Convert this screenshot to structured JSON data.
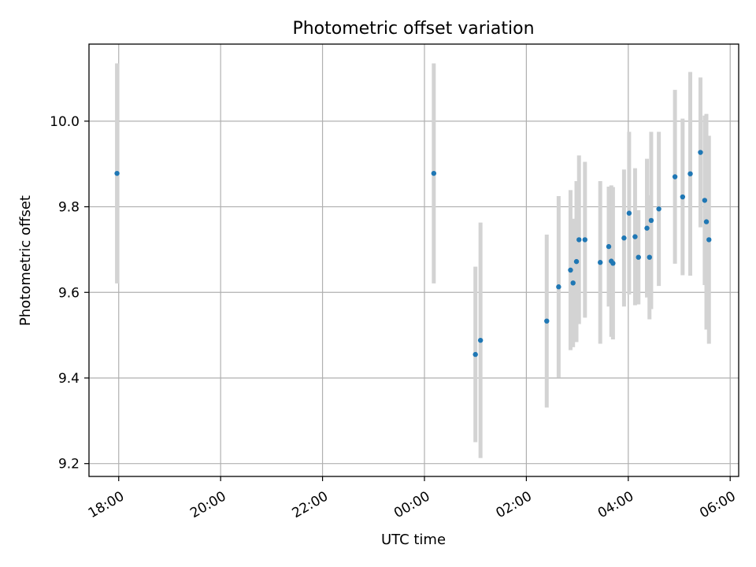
{
  "chart_data": {
    "type": "scatter",
    "title": "Photometric offset variation",
    "xlabel": "UTC time",
    "ylabel": "Photometric offset",
    "x_ticks": [
      {
        "label": "18:00",
        "t": "18:00"
      },
      {
        "label": "20:00",
        "t": "20:00"
      },
      {
        "label": "22:00",
        "t": "22:00"
      },
      {
        "label": "00:00",
        "t": "00:00"
      },
      {
        "label": "02:00",
        "t": "02:00"
      },
      {
        "label": "04:00",
        "t": "04:00"
      },
      {
        "label": "06:00",
        "t": "06:00"
      }
    ],
    "x_range": [
      "17:25",
      "06:10"
    ],
    "y_ticks": [
      9.2,
      9.4,
      9.6,
      9.8,
      10.0
    ],
    "ylim": [
      9.17,
      10.18
    ],
    "grid": true,
    "colors": {
      "points": "#1f77b4",
      "errorbars": "#d3d3d3"
    },
    "points": [
      {
        "t": "17:58",
        "y": 9.878,
        "err": 0.257
      },
      {
        "t": "00:11",
        "y": 9.878,
        "err": 0.257
      },
      {
        "t": "01:00",
        "y": 9.455,
        "err": 0.205
      },
      {
        "t": "01:06",
        "y": 9.488,
        "err": 0.275
      },
      {
        "t": "02:24",
        "y": 9.533,
        "err": 0.202
      },
      {
        "t": "02:38",
        "y": 9.613,
        "err": 0.212
      },
      {
        "t": "02:52",
        "y": 9.652,
        "err": 0.187
      },
      {
        "t": "02:55",
        "y": 9.622,
        "err": 0.15
      },
      {
        "t": "02:59",
        "y": 9.672,
        "err": 0.188
      },
      {
        "t": "03:02",
        "y": 9.723,
        "err": 0.197
      },
      {
        "t": "03:09",
        "y": 9.723,
        "err": 0.182
      },
      {
        "t": "03:27",
        "y": 9.67,
        "err": 0.19
      },
      {
        "t": "03:37",
        "y": 9.707,
        "err": 0.14
      },
      {
        "t": "03:40",
        "y": 9.673,
        "err": 0.177
      },
      {
        "t": "03:42",
        "y": 9.668,
        "err": 0.178
      },
      {
        "t": "03:55",
        "y": 9.727,
        "err": 0.16
      },
      {
        "t": "04:01",
        "y": 9.785,
        "err": 0.19
      },
      {
        "t": "04:08",
        "y": 9.73,
        "err": 0.16
      },
      {
        "t": "04:12",
        "y": 9.682,
        "err": 0.11
      },
      {
        "t": "04:22",
        "y": 9.75,
        "err": 0.162
      },
      {
        "t": "04:25",
        "y": 9.682,
        "err": 0.145
      },
      {
        "t": "04:27",
        "y": 9.768,
        "err": 0.207
      },
      {
        "t": "04:36",
        "y": 9.795,
        "err": 0.18
      },
      {
        "t": "04:55",
        "y": 9.87,
        "err": 0.203
      },
      {
        "t": "05:04",
        "y": 9.823,
        "err": 0.183
      },
      {
        "t": "05:13",
        "y": 9.877,
        "err": 0.238
      },
      {
        "t": "05:25",
        "y": 9.927,
        "err": 0.175
      },
      {
        "t": "05:30",
        "y": 9.815,
        "err": 0.198
      },
      {
        "t": "05:32",
        "y": 9.765,
        "err": 0.252
      },
      {
        "t": "05:35",
        "y": 9.723,
        "err": 0.243
      }
    ]
  }
}
